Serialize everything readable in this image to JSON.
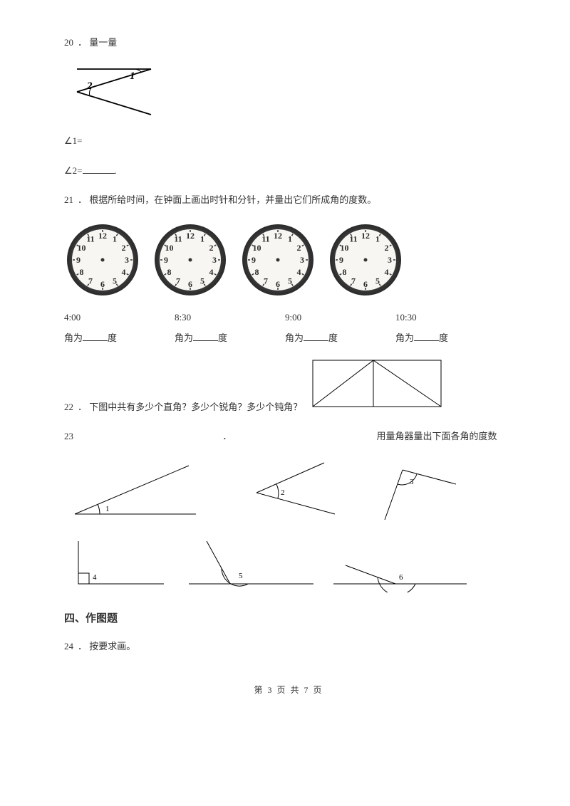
{
  "q20": {
    "num": "20",
    "sep": "．",
    "title": "量一量",
    "a1": "∠1=",
    "a2": "∠2=",
    "a2end": "."
  },
  "q21": {
    "num": "21",
    "sep": "．",
    "title": "根据所给时间，在钟面上画出时针和分针，并量出它们所成角的度数。",
    "times": [
      "4:00",
      "8:30",
      "9:00",
      "10:30"
    ],
    "angle_prefix": "角为",
    "angle_suffix": "度"
  },
  "q22": {
    "num": "22",
    "sep": "．",
    "title": "下图中共有多少个直角？多少个锐角？多少个钝角？"
  },
  "q23": {
    "num": "23",
    "sep": "．",
    "title": "用量角器量出下面各角的度数",
    "labels": [
      "1",
      "2",
      "3",
      "4",
      "5",
      "6"
    ]
  },
  "sec4": {
    "title": "四、作图题"
  },
  "q24": {
    "num": "24",
    "sep": "．",
    "title": "按要求画。"
  },
  "footer": {
    "prefix": "第 ",
    "current": "3",
    "mid": " 页 共 ",
    "total": "7",
    "suffix": " 页"
  },
  "clock": {
    "numbers": [
      "12",
      "1",
      "2",
      "3",
      "4",
      "5",
      "6",
      "7",
      "8",
      "9",
      "10",
      "11"
    ],
    "face_color": "#f8f6f2",
    "rim_color": "#4a4a4a",
    "num_color": "#2a2a2a"
  }
}
